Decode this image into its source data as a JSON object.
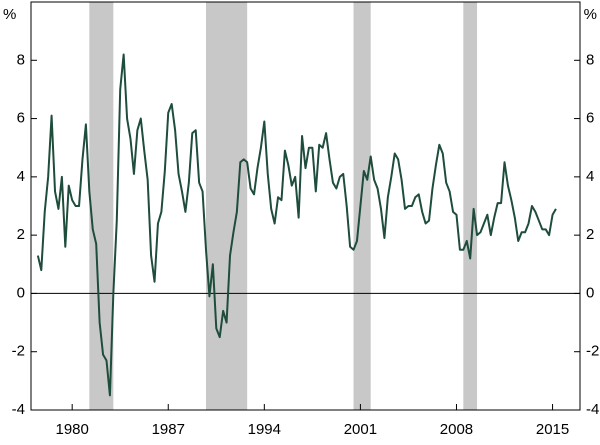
{
  "chart_data": {
    "type": "line",
    "y_unit": "%",
    "x": [
      1977.5,
      1977.75,
      1978,
      1978.25,
      1978.5,
      1978.75,
      1979,
      1979.25,
      1979.5,
      1979.75,
      1980,
      1980.25,
      1980.5,
      1980.75,
      1981,
      1981.25,
      1981.5,
      1981.75,
      1982,
      1982.25,
      1982.5,
      1982.75,
      1983,
      1983.25,
      1983.5,
      1983.75,
      1984,
      1984.25,
      1984.5,
      1984.75,
      1985,
      1985.25,
      1985.5,
      1985.75,
      1986,
      1986.25,
      1986.5,
      1986.75,
      1987,
      1987.25,
      1987.5,
      1987.75,
      1988,
      1988.25,
      1988.5,
      1988.75,
      1989,
      1989.25,
      1989.5,
      1989.75,
      1990,
      1990.25,
      1990.5,
      1990.75,
      1991,
      1991.25,
      1991.5,
      1991.75,
      1992,
      1992.25,
      1992.5,
      1992.75,
      1993,
      1993.25,
      1993.5,
      1993.75,
      1994,
      1994.25,
      1994.5,
      1994.75,
      1995,
      1995.25,
      1995.5,
      1995.75,
      1996,
      1996.25,
      1996.5,
      1996.75,
      1997,
      1997.25,
      1997.5,
      1997.75,
      1998,
      1998.25,
      1998.5,
      1998.75,
      1999,
      1999.25,
      1999.5,
      1999.75,
      2000,
      2000.25,
      2000.5,
      2000.75,
      2001,
      2001.25,
      2001.5,
      2001.75,
      2002,
      2002.25,
      2002.5,
      2002.75,
      2003,
      2003.25,
      2003.5,
      2003.75,
      2004,
      2004.25,
      2004.5,
      2004.75,
      2005,
      2005.25,
      2005.5,
      2005.75,
      2006,
      2006.25,
      2006.5,
      2006.75,
      2007,
      2007.25,
      2007.5,
      2007.75,
      2008,
      2008.25,
      2008.5,
      2008.75,
      2009,
      2009.25,
      2009.5,
      2009.75,
      2010,
      2010.25,
      2010.5,
      2010.75,
      2011,
      2011.25,
      2011.5,
      2011.75,
      2012,
      2012.25,
      2012.5,
      2012.75,
      2013,
      2013.25,
      2013.5,
      2013.75,
      2014,
      2014.25,
      2014.5,
      2014.75,
      2015,
      2015.25
    ],
    "series": [
      {
        "color": "#1e4d3b",
        "values": [
          1.3,
          0.8,
          2.8,
          4.0,
          6.1,
          3.5,
          2.9,
          4.0,
          1.6,
          3.7,
          3.2,
          3.0,
          3.0,
          4.6,
          5.8,
          3.5,
          2.2,
          1.7,
          -1.0,
          -2.1,
          -2.3,
          -3.5,
          0.0,
          2.5,
          7.0,
          8.2,
          6.0,
          5.3,
          4.1,
          5.6,
          6.0,
          4.9,
          3.9,
          1.3,
          0.4,
          2.4,
          2.8,
          4.2,
          6.2,
          6.5,
          5.6,
          4.1,
          3.5,
          2.8,
          3.8,
          5.5,
          5.6,
          3.8,
          3.5,
          1.5,
          -0.1,
          1.0,
          -1.2,
          -1.5,
          -0.6,
          -1.0,
          1.3,
          2.1,
          2.8,
          4.5,
          4.6,
          4.5,
          3.6,
          3.4,
          4.3,
          5.0,
          5.9,
          4.1,
          2.9,
          2.4,
          3.3,
          3.2,
          4.9,
          4.4,
          3.7,
          4.0,
          2.6,
          5.4,
          4.3,
          5.0,
          5.0,
          3.5,
          5.1,
          5.0,
          5.5,
          4.6,
          3.8,
          3.6,
          4.0,
          4.1,
          3.0,
          1.6,
          1.5,
          1.8,
          3.0,
          4.2,
          3.9,
          4.7,
          3.9,
          3.6,
          2.9,
          1.9,
          3.3,
          4.0,
          4.8,
          4.6,
          3.9,
          2.9,
          3.0,
          3.0,
          3.3,
          3.4,
          2.8,
          2.4,
          2.5,
          3.6,
          4.4,
          5.1,
          4.8,
          3.8,
          3.5,
          2.8,
          2.7,
          1.5,
          1.5,
          1.8,
          1.2,
          2.9,
          2.0,
          2.1,
          2.4,
          2.7,
          2.0,
          2.6,
          3.1,
          3.1,
          4.5,
          3.7,
          3.2,
          2.6,
          1.8,
          2.1,
          2.1,
          2.4,
          3.0,
          2.8,
          2.5,
          2.2,
          2.2,
          2.0,
          2.7,
          2.9
        ]
      }
    ],
    "shaded": [
      [
        1981.25,
        1983
      ],
      [
        1989.75,
        1992.75
      ],
      [
        2000.5,
        2001.75
      ],
      [
        2008.5,
        2009.5
      ]
    ],
    "shade_color": "#c8c8c8",
    "xlim": [
      1977,
      2017
    ],
    "xticks": [
      1980,
      1987,
      1994,
      2001,
      2008,
      2015
    ],
    "ylim": [
      -4,
      10
    ],
    "yticks": [
      -4,
      -2,
      0,
      2,
      4,
      6,
      8
    ]
  }
}
